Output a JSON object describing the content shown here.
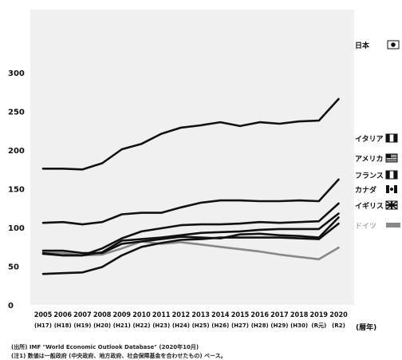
{
  "chart_data": {
    "type": "line",
    "xlabel": "(暦年)",
    "ylabel": "",
    "ylim": [
      0,
      300
    ],
    "y_ticks": [
      0,
      50,
      100,
      150,
      200,
      250,
      300
    ],
    "x": [
      "2005",
      "2006",
      "2007",
      "2008",
      "2009",
      "2010",
      "2011",
      "2012",
      "2013",
      "2014",
      "2015",
      "2016",
      "2017",
      "2018",
      "2019",
      "2020"
    ],
    "x_sub": [
      "(H17)",
      "(H18)",
      "(H19)",
      "(H20)",
      "(H21)",
      "(H22)",
      "(H23)",
      "(H24)",
      "(H25)",
      "(H26)",
      "(H27)",
      "(H28)",
      "(H29)",
      "(H30)",
      "(R元)",
      "(R2)"
    ],
    "grid": false,
    "legend_placement": "right",
    "series": [
      {
        "name": "日本",
        "color": "#111111",
        "marker": "circle",
        "values": [
          176,
          176,
          175,
          183,
          201,
          208,
          221,
          229,
          232,
          236,
          231,
          236,
          234,
          237,
          238,
          266
        ]
      },
      {
        "name": "イタリア",
        "color": "#111111",
        "marker": "flag-italy",
        "values": [
          106,
          107,
          104,
          107,
          117,
          119,
          119,
          126,
          132,
          135,
          135,
          134,
          134,
          135,
          134,
          162
        ]
      },
      {
        "name": "アメリカ",
        "color": "#111111",
        "marker": "flag-usa",
        "values": [
          66,
          64,
          64,
          73,
          86,
          95,
          99,
          103,
          104,
          104,
          105,
          107,
          106,
          107,
          108,
          131
        ]
      },
      {
        "name": "フランス",
        "color": "#111111",
        "marker": "flag-france",
        "values": [
          67,
          64,
          64,
          68,
          83,
          85,
          87,
          90,
          93,
          94,
          95,
          97,
          98,
          98,
          98,
          118
        ]
      },
      {
        "name": "カナダ",
        "color": "#111111",
        "marker": "flag-canada",
        "values": [
          70,
          70,
          67,
          67,
          79,
          82,
          85,
          88,
          87,
          86,
          91,
          92,
          90,
          89,
          87,
          113
        ]
      },
      {
        "name": "イギリス",
        "color": "#111111",
        "marker": "flag-uk",
        "values": [
          40,
          41,
          42,
          49,
          64,
          75,
          80,
          84,
          85,
          87,
          87,
          87,
          87,
          86,
          85,
          105
        ]
      },
      {
        "name": "ドイツ",
        "color": "#888888",
        "marker": "bar-gray",
        "values": [
          67,
          67,
          64,
          65,
          73,
          82,
          79,
          81,
          78,
          75,
          72,
          69,
          65,
          62,
          59,
          74
        ]
      }
    ]
  },
  "notes": [
    "(出所) IMF \"World Economic Outlook Database\" (2020年10月)",
    "(注1) 数値は一般政府 (中央政府、地方政府、社会保障基金を合わせたもの) ベース。"
  ]
}
